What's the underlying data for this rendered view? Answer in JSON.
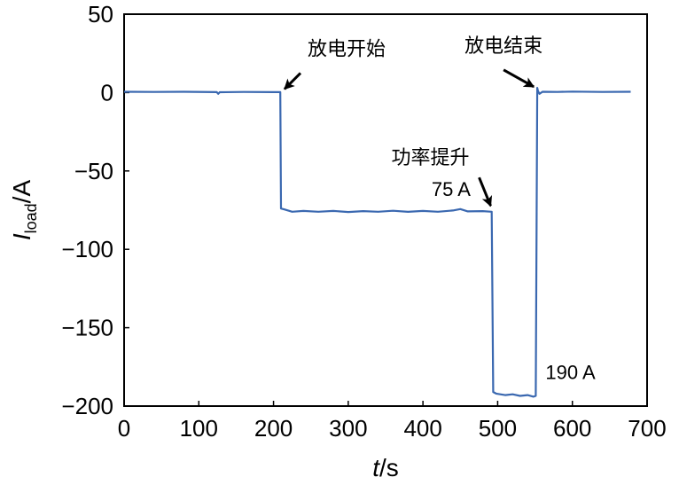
{
  "chart_data": {
    "type": "line",
    "xlabel": {
      "italic": "t",
      "rest": "/s"
    },
    "ylabel": {
      "italic": "I",
      "sub": "load",
      "rest": "/A"
    },
    "xlim": [
      0,
      700
    ],
    "ylim": [
      -200,
      50
    ],
    "xticks": [
      0,
      100,
      200,
      300,
      400,
      500,
      600,
      700
    ],
    "yticks": [
      50,
      0,
      -50,
      -100,
      -150,
      -200
    ],
    "ytick_labels": [
      "50",
      "0",
      "−50",
      "−100",
      "−150",
      "−200"
    ],
    "grid": false,
    "line_color": "#3a68b0",
    "series": [
      {
        "values": [
          [
            0,
            0.5
          ],
          [
            40,
            0.4
          ],
          [
            80,
            0.5
          ],
          [
            124,
            0.3
          ],
          [
            126,
            -0.8
          ],
          [
            128,
            0.2
          ],
          [
            160,
            0.4
          ],
          [
            200,
            0.3
          ],
          [
            209,
            0.3
          ],
          [
            210,
            -74
          ],
          [
            214,
            -74.5
          ],
          [
            225,
            -76
          ],
          [
            240,
            -75.5
          ],
          [
            260,
            -76
          ],
          [
            280,
            -75.5
          ],
          [
            300,
            -76.2
          ],
          [
            320,
            -75.6
          ],
          [
            340,
            -76
          ],
          [
            360,
            -75.4
          ],
          [
            380,
            -76.1
          ],
          [
            400,
            -75.5
          ],
          [
            420,
            -76
          ],
          [
            440,
            -75.2
          ],
          [
            450,
            -74.3
          ],
          [
            460,
            -75.8
          ],
          [
            480,
            -75.6
          ],
          [
            492,
            -76
          ],
          [
            494,
            -191
          ],
          [
            498,
            -192
          ],
          [
            510,
            -193
          ],
          [
            520,
            -192.5
          ],
          [
            530,
            -193.5
          ],
          [
            540,
            -193
          ],
          [
            548,
            -194
          ],
          [
            551,
            -193.5
          ],
          [
            553,
            3
          ],
          [
            554,
            1
          ],
          [
            556,
            -0.8
          ],
          [
            560,
            0.5
          ],
          [
            580,
            0.4
          ],
          [
            600,
            0.6
          ],
          [
            640,
            0.4
          ],
          [
            678,
            0.5
          ]
        ]
      }
    ],
    "annotations": [
      {
        "text": "放电开始",
        "x": 210,
        "y": 0
      },
      {
        "text": "放电结束",
        "x": 553,
        "y": 2
      },
      {
        "text": "功率提升",
        "x": 493,
        "y": -74
      }
    ],
    "value_labels": [
      {
        "text": "75 A",
        "x": 300,
        "y": -75
      },
      {
        "text": "190 A",
        "x": 500,
        "y": -193
      }
    ]
  }
}
